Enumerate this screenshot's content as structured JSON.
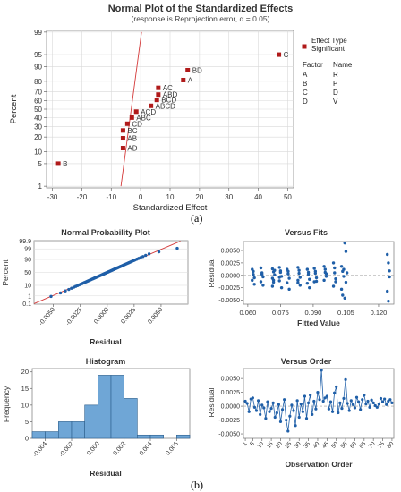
{
  "figure": {
    "caption_a": "(a)",
    "caption_b": "(b)"
  },
  "colors": {
    "point_red": "#b01a1a",
    "ref_line": "#d43a3a",
    "point_blue": "#1f5fa8",
    "bar_fill": "#6fa6d6",
    "grid": "#d9d9d9"
  },
  "chart_data": [
    {
      "id": "normal_effects",
      "type": "scatter",
      "title": "Normal Plot of the Standardized Effects",
      "subtitle": "(response is Reprojection error, α = 0.05)",
      "xlabel": "Standardized Effect",
      "ylabel": "Percent",
      "x_ticks": [
        -30,
        -20,
        -10,
        0,
        10,
        20,
        30,
        40,
        50
      ],
      "y_ticks": [
        1,
        5,
        10,
        20,
        30,
        40,
        50,
        60,
        70,
        80,
        90,
        95,
        99
      ],
      "xlim": [
        -32,
        52
      ],
      "ylim_percent": [
        1,
        99
      ],
      "y_scale": "normal-probability",
      "grid": true,
      "reference_line": {
        "x_at_p1": -6.7,
        "x_at_p99": 0.3
      },
      "legend": {
        "effect_type_title": "Effect Type",
        "effect_type_entry": "Significant",
        "factor_header": "Factor",
        "name_header": "Name",
        "rows": [
          {
            "factor": "A",
            "name": "R"
          },
          {
            "factor": "B",
            "name": "P"
          },
          {
            "factor": "C",
            "name": "D"
          },
          {
            "factor": "D",
            "name": "V"
          }
        ]
      },
      "points": [
        {
          "label": "B",
          "x": -28,
          "y": 5
        },
        {
          "label": "AD",
          "x": -6,
          "y": 12
        },
        {
          "label": "AB",
          "x": -6,
          "y": 19
        },
        {
          "label": "BC",
          "x": -6,
          "y": 26
        },
        {
          "label": "CD",
          "x": -4.5,
          "y": 33
        },
        {
          "label": "ABC",
          "x": -3,
          "y": 40
        },
        {
          "label": "ACD",
          "x": -1.5,
          "y": 47
        },
        {
          "label": "ABCD",
          "x": 3.5,
          "y": 54
        },
        {
          "label": "BCD",
          "x": 5.5,
          "y": 61
        },
        {
          "label": "ABD",
          "x": 6,
          "y": 67
        },
        {
          "label": "AC",
          "x": 6,
          "y": 74
        },
        {
          "label": "A",
          "x": 14.5,
          "y": 81
        },
        {
          "label": "BD",
          "x": 16,
          "y": 88
        },
        {
          "label": "C",
          "x": 47,
          "y": 95
        }
      ]
    },
    {
      "id": "npp",
      "type": "scatter",
      "title": "Normal Probability Plot",
      "xlabel": "Residual",
      "ylabel": "Percent",
      "x_ticks": [
        "-0.0050",
        "-0.0025",
        "0.0000",
        "0.0025",
        "0.0050"
      ],
      "x_tick_values": [
        -0.005,
        -0.0025,
        0,
        0.0025,
        0.005
      ],
      "y_ticks": [
        "0.1",
        "1",
        "10",
        "50",
        "90",
        "99",
        "99.9"
      ],
      "y_tick_values": [
        0.1,
        1,
        10,
        50,
        90,
        99,
        99.9
      ],
      "xlim": [
        -0.0068,
        0.0075
      ],
      "y_scale": "normal-probability",
      "reference_line": {
        "mean": 0,
        "sd": 0.0022
      },
      "points": {
        "n": 80,
        "residual_sd": 0.0022,
        "outliers": [
          0.0065,
          0.0048
        ]
      }
    },
    {
      "id": "versus_fits",
      "type": "scatter",
      "title": "Versus Fits",
      "xlabel": "Fitted Value",
      "ylabel": "Residual",
      "x_ticks": [
        "0.060",
        "0.075",
        "0.090",
        "0.105",
        "0.120"
      ],
      "x_tick_values": [
        0.06,
        0.075,
        0.09,
        0.105,
        0.12
      ],
      "y_ticks": [
        "-0.0050",
        "-0.0025",
        "0.0000",
        "0.0025",
        "0.0050"
      ],
      "y_tick_values": [
        -0.005,
        -0.0025,
        0,
        0.0025,
        0.005
      ],
      "xlim": [
        0.058,
        0.127
      ],
      "ylim": [
        -0.0058,
        0.0068
      ],
      "zero_line": true,
      "groups": [
        {
          "x": 0.0625,
          "residuals": [
            0.0012,
            0.0002,
            -0.0005,
            -0.001,
            0.0008,
            -0.0018
          ]
        },
        {
          "x": 0.0665,
          "residuals": [
            0.0015,
            0.0005,
            -0.0003,
            -0.0013,
            0.0002,
            -0.002
          ]
        },
        {
          "x": 0.0718,
          "residuals": [
            0.0013,
            0.0007,
            0.0001,
            -0.0006,
            -0.0014,
            0.001,
            -0.0022,
            -0.001
          ]
        },
        {
          "x": 0.075,
          "residuals": [
            0.0016,
            0.0006,
            -0.0002,
            -0.0011,
            0.0009,
            -0.0025,
            -0.0004
          ]
        },
        {
          "x": 0.0785,
          "residuals": [
            0.0012,
            0.0003,
            -0.0006,
            -0.0015,
            0.0008,
            -0.0028
          ]
        },
        {
          "x": 0.0835,
          "residuals": [
            0.0016,
            0.0004,
            -0.0004,
            -0.001,
            0.001,
            -0.002,
            -0.0015
          ]
        },
        {
          "x": 0.0878,
          "residuals": [
            0.0012,
            0.0006,
            -0.0008,
            -0.0016,
            0.0002,
            -0.0025
          ]
        },
        {
          "x": 0.091,
          "residuals": [
            0.0014,
            0.0004,
            -0.0005,
            -0.0013,
            0.0008,
            -0.0012
          ]
        },
        {
          "x": 0.0955,
          "residuals": [
            0.0018,
            0.0006,
            -0.0002,
            -0.001,
            0.0012,
            0.0003
          ]
        },
        {
          "x": 0.0998,
          "residuals": [
            0.0025,
            0.0005,
            -0.0007,
            -0.0022,
            0.0015,
            -0.0013
          ]
        },
        {
          "x": 0.1035,
          "residuals": [
            0.0018,
            0.0008,
            -0.0002,
            -0.0028,
            -0.004,
            0.0012
          ]
        },
        {
          "x": 0.105,
          "residuals": [
            0.0065,
            0.0048,
            0.0005,
            -0.0046,
            -0.0014
          ]
        },
        {
          "x": 0.1245,
          "residuals": [
            0.0042,
            0.0025,
            0.0009,
            -0.0032,
            -0.0052,
            -0.0003
          ]
        }
      ]
    },
    {
      "id": "histogram",
      "type": "bar",
      "title": "Histogram",
      "xlabel": "Residual",
      "ylabel": "Frequency",
      "x_ticks": [
        "-0.004",
        "-0.002",
        "0.000",
        "0.002",
        "0.004",
        "0.006"
      ],
      "x_tick_values": [
        -0.004,
        -0.002,
        0,
        0.002,
        0.004,
        0.006
      ],
      "y_ticks": [
        "0",
        "5",
        "10",
        "15",
        "20"
      ],
      "y_tick_values": [
        0,
        5,
        10,
        15,
        20
      ],
      "xlim": [
        -0.005,
        0.007
      ],
      "ylim": [
        0,
        21
      ],
      "bins": [
        {
          "from": -0.005,
          "to": -0.004,
          "count": 2
        },
        {
          "from": -0.004,
          "to": -0.003,
          "count": 2
        },
        {
          "from": -0.003,
          "to": -0.002,
          "count": 5
        },
        {
          "from": -0.002,
          "to": -0.001,
          "count": 5
        },
        {
          "from": -0.001,
          "to": 0.0,
          "count": 10
        },
        {
          "from": 0.0,
          "to": 0.001,
          "count": 19
        },
        {
          "from": 0.001,
          "to": 0.002,
          "count": 19
        },
        {
          "from": 0.002,
          "to": 0.003,
          "count": 12
        },
        {
          "from": 0.003,
          "to": 0.004,
          "count": 1
        },
        {
          "from": 0.004,
          "to": 0.005,
          "count": 1
        },
        {
          "from": 0.005,
          "to": 0.006,
          "count": 0
        },
        {
          "from": 0.006,
          "to": 0.007,
          "count": 1
        }
      ]
    },
    {
      "id": "versus_order",
      "type": "line",
      "title": "Versus Order",
      "xlabel": "Observation Order",
      "ylabel": "Residual",
      "x_ticks": [
        "1",
        "5",
        "10",
        "15",
        "20",
        "25",
        "30",
        "35",
        "40",
        "45",
        "50",
        "55",
        "60",
        "65",
        "70",
        "75",
        "80"
      ],
      "x_tick_values": [
        1,
        5,
        10,
        15,
        20,
        25,
        30,
        35,
        40,
        45,
        50,
        55,
        60,
        65,
        70,
        75,
        80
      ],
      "y_ticks": [
        "-0.0050",
        "-0.0025",
        "0.0000",
        "0.0025",
        "0.0050"
      ],
      "y_tick_values": [
        -0.005,
        -0.0025,
        0,
        0.0025,
        0.005
      ],
      "xlim": [
        0,
        81
      ],
      "ylim": [
        -0.0058,
        0.0068
      ],
      "zero_line": true,
      "values": [
        0.0009,
        0.0005,
        -0.001,
        0.0013,
        0.0015,
        -0.0002,
        -0.0008,
        0.001,
        -0.0015,
        0.0002,
        -0.0003,
        -0.0022,
        0.0008,
        -0.001,
        -0.0004,
        0.0006,
        -0.002,
        -0.0012,
        0.0003,
        -0.0028,
        -0.0006,
        0.0012,
        -0.0025,
        -0.0045,
        -0.0018,
        0.0002,
        -0.0008,
        -0.0035,
        0.001,
        -0.002,
        0.0004,
        -0.001,
        0.0018,
        -0.0022,
        0.0006,
        0.002,
        -0.0015,
        0.0009,
        -0.0005,
        0.0025,
        0.0012,
        0.0065,
        0.0009,
        0.0015,
        0.0018,
        -0.0005,
        0.0008,
        -0.001,
        0.0024,
        0.0035,
        -0.0012,
        0.0006,
        -0.0004,
        0.0014,
        0.0048,
        0.0005,
        -0.0008,
        0.001,
        0.0003,
        -0.0003,
        0.0016,
        0.0008,
        -0.0006,
        0.0012,
        0.002,
        0.0004,
        0.0009,
        -0.0002,
        0.0011,
        0.0006,
        0.0001,
        -0.0002,
        0.0004,
        0.0014,
        0.0008,
        0.0013,
        0.0003,
        0.0009,
        0.0012,
        0.0006
      ]
    }
  ]
}
